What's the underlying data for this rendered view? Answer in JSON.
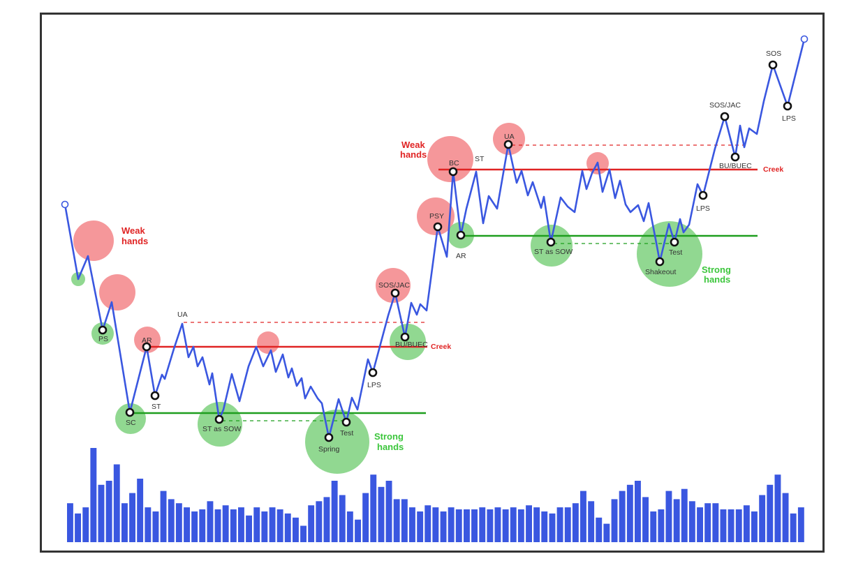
{
  "chart_data": {
    "type": "line",
    "title": "",
    "colors": {
      "price": "#3a57e0",
      "volume": "#3a57e0",
      "resistance": "#e02424",
      "support": "#1e9e1e",
      "weak_circle": "#f4898c",
      "strong_circle": "#7ed17e",
      "weak_text": "#e02424",
      "strong_text": "#3cc63c"
    },
    "price_path": [
      [
        0,
        80
      ],
      [
        1,
        63
      ],
      [
        2,
        69
      ],
      [
        3,
        39
      ],
      [
        4,
        47
      ],
      [
        5,
        5
      ],
      [
        6,
        37
      ],
      [
        7,
        21
      ],
      [
        8,
        27
      ],
      [
        9,
        42
      ],
      [
        10,
        32
      ],
      [
        11,
        35
      ],
      [
        12,
        29
      ],
      [
        13,
        31
      ],
      [
        14,
        24
      ],
      [
        15,
        1
      ],
      [
        16,
        23
      ],
      [
        17,
        34
      ],
      [
        18,
        25
      ],
      [
        19,
        27
      ],
      [
        20,
        33
      ],
      [
        21,
        22
      ],
      [
        22,
        25
      ],
      [
        23,
        18
      ],
      [
        24,
        19
      ],
      [
        25,
        13
      ],
      [
        26,
        -3
      ],
      [
        27,
        9
      ],
      [
        28,
        -1
      ],
      [
        29,
        3
      ],
      [
        30,
        17
      ],
      [
        31,
        21
      ],
      [
        32,
        34
      ],
      [
        33,
        53
      ],
      [
        34,
        43
      ],
      [
        35,
        49
      ],
      [
        36,
        47
      ],
      [
        37,
        50
      ],
      [
        38,
        100
      ],
      [
        39,
        90
      ],
      [
        40,
        137
      ],
      [
        41,
        98
      ],
      [
        42,
        115
      ],
      [
        43,
        108
      ],
      [
        44,
        120
      ],
      [
        45,
        99
      ],
      [
        46,
        104
      ],
      [
        47,
        97
      ],
      [
        48,
        110
      ],
      [
        49,
        108
      ],
      [
        50,
        126
      ],
      [
        51,
        105
      ],
      [
        52,
        111
      ],
      [
        53,
        96
      ],
      [
        54,
        94
      ],
      [
        55,
        95
      ],
      [
        56,
        93
      ],
      [
        57,
        105
      ],
      [
        58,
        110
      ],
      [
        59,
        121
      ],
      [
        60,
        121
      ],
      [
        61,
        132
      ],
      [
        62,
        137
      ],
      [
        63,
        141
      ],
      [
        64,
        146
      ],
      [
        65,
        149
      ],
      [
        66,
        156
      ],
      [
        67,
        153
      ],
      [
        68,
        148
      ]
    ],
    "volume": [
      19,
      14,
      17,
      46,
      28,
      30,
      38,
      19,
      24,
      31,
      17,
      15,
      25,
      21,
      19,
      17,
      15,
      16,
      20,
      16,
      18,
      16,
      17,
      13,
      17,
      15,
      17,
      16,
      14,
      12,
      8,
      18,
      20,
      22,
      30,
      23,
      15,
      11,
      24,
      33,
      27,
      30,
      21,
      21,
      17,
      15,
      18,
      17,
      15,
      17,
      16,
      16,
      16,
      17,
      16,
      17,
      16,
      17,
      16,
      18,
      17,
      15,
      14,
      17,
      17,
      19,
      25,
      20,
      12,
      9,
      21,
      25,
      28,
      30,
      22,
      15,
      16,
      25,
      21,
      26,
      20,
      17,
      19,
      19,
      16,
      16,
      16,
      18,
      15,
      23,
      28,
      33,
      24,
      14,
      17
    ],
    "lines": [
      {
        "label": "Creek",
        "style": "resistance",
        "level": 1
      },
      {
        "label": "Creek",
        "style": "resistance",
        "level": 2
      }
    ],
    "events": [
      "PS",
      "SC",
      "AR",
      "ST",
      "UA",
      "ST as SOW",
      "Spring",
      "Test",
      "LPS",
      "SOS/JAC",
      "BU/BUEC",
      "PSY",
      "BC",
      "ST",
      "AR",
      "UA",
      "ST as SOW",
      "Shakeout",
      "Test",
      "LPS",
      "SOS/JAC",
      "BU/BUEC",
      "SOS",
      "LPS"
    ],
    "annotations": {
      "weak_hands": "Weak\nhands",
      "strong_hands": "Strong\nhands",
      "creek": "Creek"
    }
  },
  "texts": {
    "weak1_a": "Weak",
    "weak1_b": "hands",
    "weak2_a": "Weak",
    "weak2_b": "hands",
    "strong1_a": "Strong",
    "strong1_b": "hands",
    "strong2_a": "Strong",
    "strong2_b": "hands",
    "creek1": "Creek",
    "creek2": "Creek",
    "ps": "PS",
    "sc": "SC",
    "ar1": "AR",
    "st1": "ST",
    "ua1": "UA",
    "stsow1": "ST as SOW",
    "spring": "Spring",
    "test1": "Test",
    "lps1": "LPS",
    "sosjac1": "SOS/JAC",
    "bubuec1": "BU/BUEC",
    "psy": "PSY",
    "bc": "BC",
    "st2": "ST",
    "ar2": "AR",
    "ua2": "UA",
    "stsow2": "ST as SOW",
    "shakeout": "Shakeout",
    "test2": "Test",
    "lps2": "LPS",
    "sosjac2": "SOS/JAC",
    "bubuec2": "BU/BUEC",
    "sos": "SOS",
    "lps3": "LPS"
  }
}
